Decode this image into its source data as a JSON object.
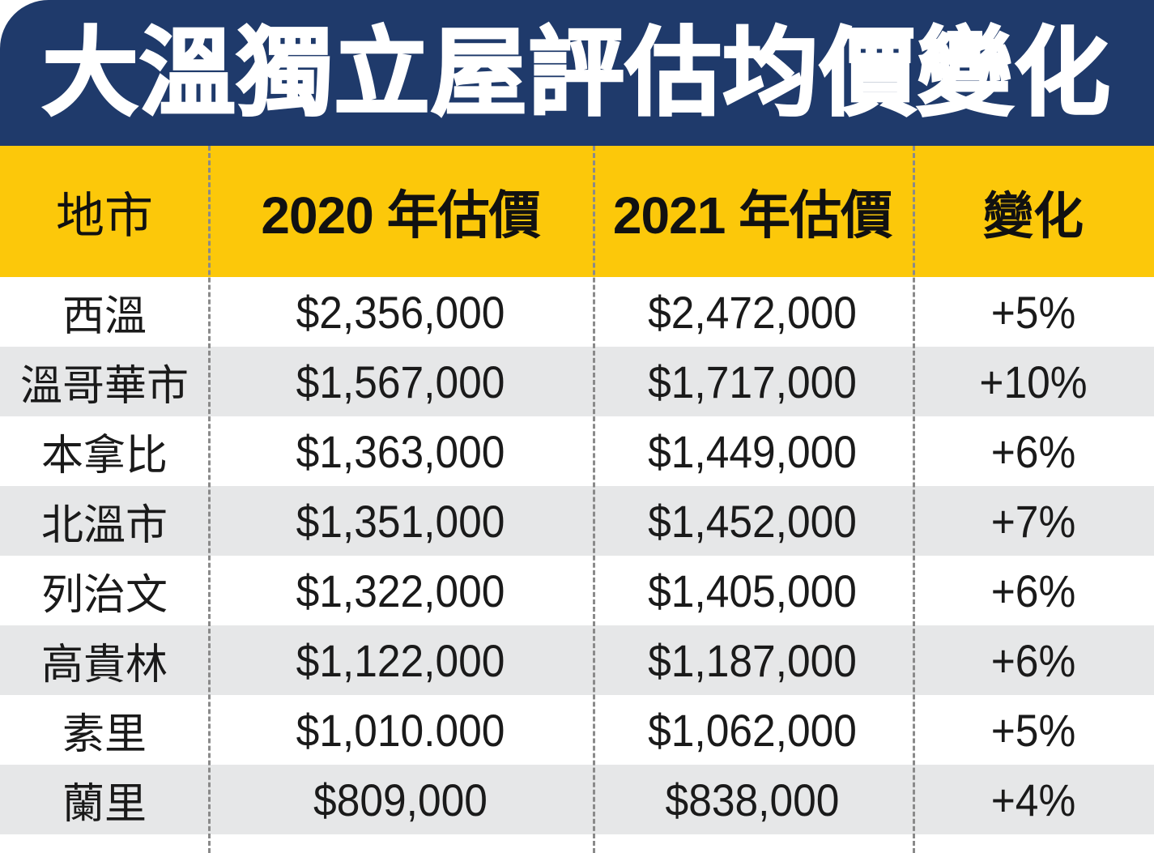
{
  "chart_data": {
    "type": "table",
    "title": "大溫獨立屋評估均價變化",
    "columns": [
      "地市",
      "2020 年估價",
      "2021 年估價",
      "變化"
    ],
    "rows": [
      [
        "西溫",
        "$2,356,000",
        "$2,472,000",
        "+5%"
      ],
      [
        "溫哥華市",
        "$1,567,000",
        "$1,717,000",
        "+10%"
      ],
      [
        "本拿比",
        "$1,363,000",
        "$1,449,000",
        "+6%"
      ],
      [
        "北溫市",
        "$1,351,000",
        "$1,452,000",
        "+7%"
      ],
      [
        "列治文",
        "$1,322,000",
        "$1,405,000",
        "+6%"
      ],
      [
        "高貴林",
        "$1,122,000",
        "$1,187,000",
        "+6%"
      ],
      [
        "素里",
        "$1,010.000",
        "$1,062,000",
        "+5%"
      ],
      [
        "蘭里",
        "$809,000",
        "$838,000",
        "+4%"
      ]
    ]
  },
  "colors": {
    "title_background": "#1f3a6b",
    "header_background": "#fcc80a",
    "alt_row_background": "#e6e7e8"
  }
}
